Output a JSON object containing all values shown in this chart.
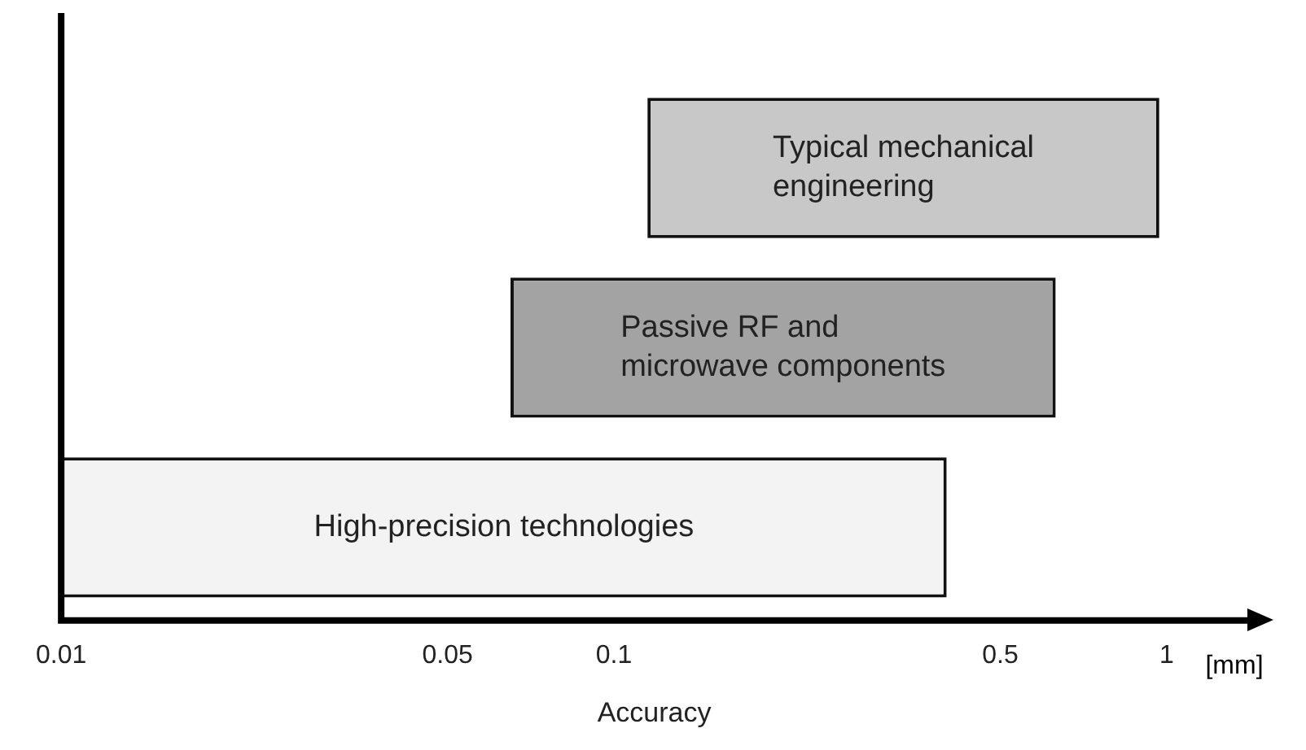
{
  "chart_data": {
    "type": "bar",
    "orientation": "horizontal",
    "xlabel": "Accuracy",
    "categories": [
      "Typical mechanical engineering",
      "Passive RF and microwave components",
      "High-precision technologies"
    ],
    "base": [
      0.115,
      0.065,
      0.01
    ],
    "values": [
      0.855,
      0.565,
      0.39
    ],
    "colors": [
      "#c8c8c8",
      "#a3a3a3",
      "#f3f3f3"
    ],
    "xlim": [
      0.01,
      1.4
    ],
    "xticks": [
      0.01,
      0.05,
      0.1,
      0.5,
      1
    ],
    "annotations": [
      "[mm]"
    ],
    "log": "x",
    "grid": false,
    "legend": false
  }
}
